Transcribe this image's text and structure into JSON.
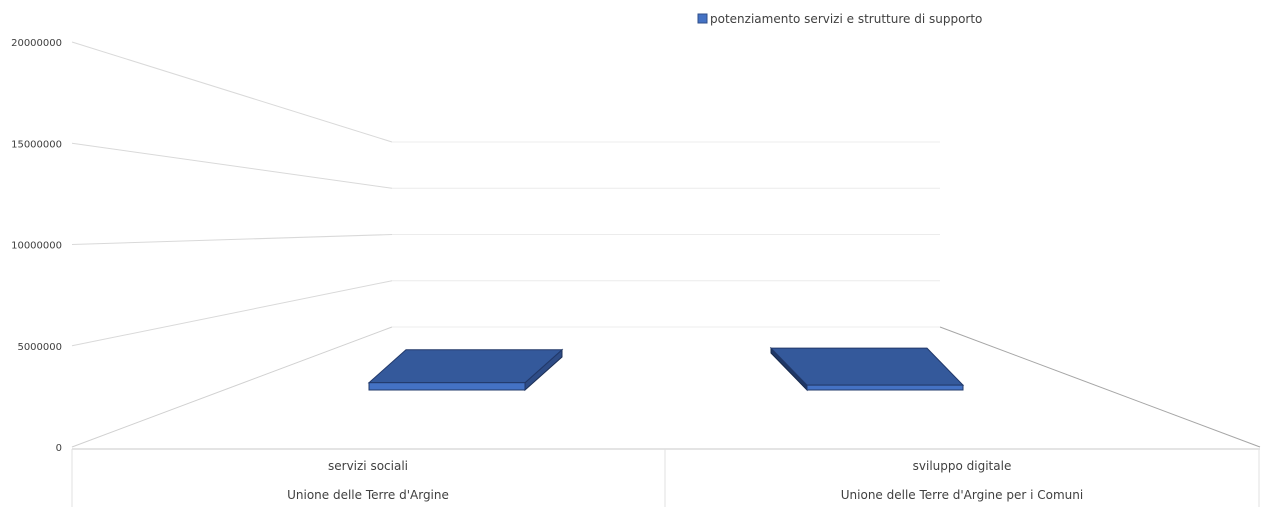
{
  "chart_data": {
    "type": "bar",
    "projection": "3d-perspective",
    "legend_position": "top",
    "series": [
      {
        "name": "potenziamento servizi e strutture di supporto",
        "color": "#4472c4"
      }
    ],
    "y_ticks": [
      "0",
      "5000000",
      "10000000",
      "15000000",
      "20000000"
    ],
    "ylim": [
      0,
      20000000
    ],
    "categories": [
      {
        "label": "servizi sociali",
        "group": "Unione delle Terre d'Argine",
        "value": 1800000
      },
      {
        "label": "sviluppo digitale",
        "group": "Unione delle Terre d'Argine per i Comuni",
        "value": 1200000
      }
    ]
  }
}
